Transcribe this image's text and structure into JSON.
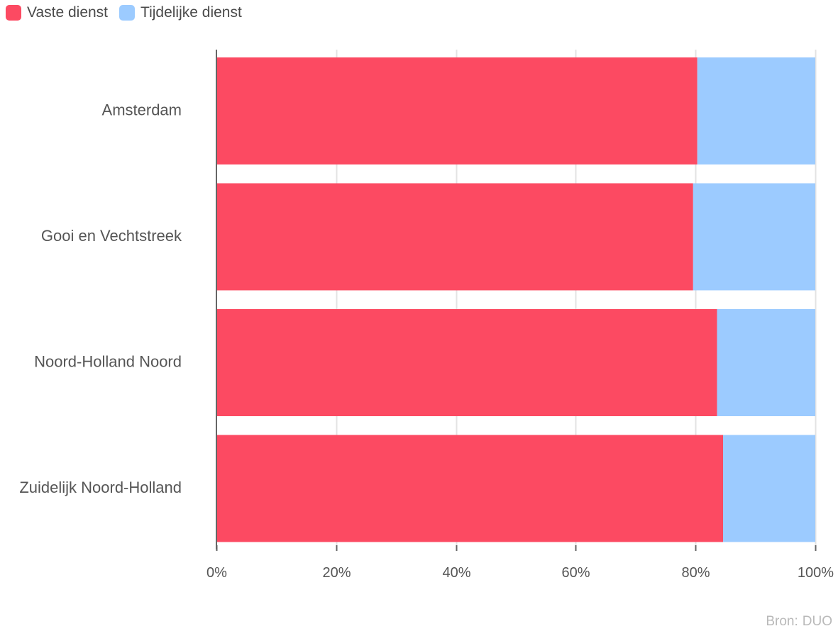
{
  "colors": {
    "vaste": "#fc4a62",
    "tijdelijk": "#9ccbff",
    "grid": "#e3e3e3",
    "axis": "#666666",
    "label": "#555555",
    "source": "#b9b9b9"
  },
  "legend": {
    "vaste_label": "Vaste dienst",
    "tijdelijk_label": "Tijdelijke dienst"
  },
  "source": {
    "prefix": "Bron:",
    "name": "DUO"
  },
  "chart_data": {
    "type": "bar",
    "orientation": "horizontal",
    "stacked": true,
    "categories": [
      "Amsterdam",
      "Gooi en Vechtstreek",
      "Noord-Holland Noord",
      "Zuidelijk Noord-Holland"
    ],
    "series": [
      {
        "name": "Vaste dienst",
        "values": [
          80.3,
          79.6,
          83.6,
          84.6
        ]
      },
      {
        "name": "Tijdelijke dienst",
        "values": [
          19.7,
          20.4,
          16.4,
          15.4
        ]
      }
    ],
    "xlim": [
      0,
      100
    ],
    "x_ticks": [
      0,
      20,
      40,
      60,
      80,
      100
    ],
    "x_tick_labels": [
      "0%",
      "20%",
      "40%",
      "60%",
      "80%",
      "100%"
    ],
    "grid": true,
    "legend_position": "top-left"
  }
}
